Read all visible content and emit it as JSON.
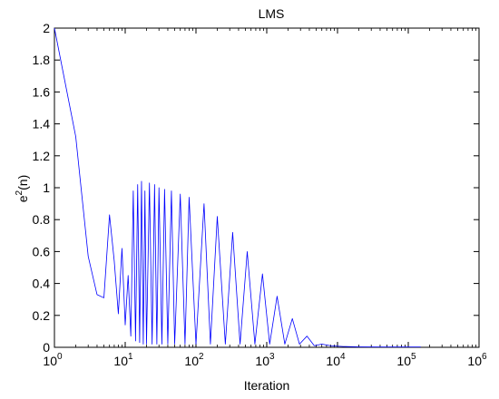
{
  "chart_data": {
    "type": "line",
    "title": "LMS",
    "xlabel": "Iteration",
    "ylabel": {
      "base": "e",
      "sup": "2",
      "suffix": "(n)"
    },
    "xscale": "log",
    "xlim": [
      1,
      1000000
    ],
    "ylim": [
      0,
      2
    ],
    "grid": false,
    "legend": "none",
    "line_color": "#0000ff",
    "x_ticks": [
      {
        "value": 1,
        "base": "10",
        "exp": "0"
      },
      {
        "value": 10,
        "base": "10",
        "exp": "1"
      },
      {
        "value": 100,
        "base": "10",
        "exp": "2"
      },
      {
        "value": 1000,
        "base": "10",
        "exp": "3"
      },
      {
        "value": 10000,
        "base": "10",
        "exp": "4"
      },
      {
        "value": 100000,
        "base": "10",
        "exp": "5"
      },
      {
        "value": 1000000,
        "base": "10",
        "exp": "6"
      }
    ],
    "y_ticks": [
      {
        "value": 0,
        "label": "0"
      },
      {
        "value": 0.2,
        "label": "0.2"
      },
      {
        "value": 0.4,
        "label": "0.4"
      },
      {
        "value": 0.6,
        "label": "0.6"
      },
      {
        "value": 0.8,
        "label": "0.8"
      },
      {
        "value": 1.0,
        "label": "1"
      },
      {
        "value": 1.2,
        "label": "1.2"
      },
      {
        "value": 1.4,
        "label": "1.4"
      },
      {
        "value": 1.6,
        "label": "1.6"
      },
      {
        "value": 1.8,
        "label": "1.8"
      },
      {
        "value": 2.0,
        "label": "2"
      }
    ],
    "series": [
      {
        "x": [
          1,
          2,
          3,
          4,
          5,
          6,
          7,
          8,
          9,
          10,
          11,
          12,
          13,
          14,
          15,
          16,
          17,
          18,
          19,
          20,
          22,
          24,
          26,
          28,
          30,
          33,
          36,
          40,
          45,
          50,
          60,
          70,
          80,
          100,
          130,
          160,
          200,
          260,
          330,
          420,
          530,
          680,
          870,
          1100,
          1400,
          1800,
          2300,
          2900,
          3700,
          4700,
          6000,
          8000,
          12000,
          20000,
          40000,
          80000,
          150000
        ],
        "y": [
          2.0,
          1.32,
          0.57,
          0.33,
          0.31,
          0.83,
          0.54,
          0.21,
          0.62,
          0.14,
          0.45,
          0.07,
          0.98,
          0.04,
          1.02,
          0.03,
          1.04,
          0.02,
          0.98,
          0.02,
          1.03,
          0.02,
          1.02,
          0.02,
          1.0,
          0.02,
          0.99,
          0.02,
          0.98,
          0.02,
          0.96,
          0.02,
          0.94,
          0.02,
          0.9,
          0.02,
          0.82,
          0.02,
          0.72,
          0.02,
          0.6,
          0.02,
          0.46,
          0.02,
          0.32,
          0.02,
          0.18,
          0.02,
          0.07,
          0.01,
          0.02,
          0.01,
          0.005,
          0.003,
          0.002,
          0.002,
          0.002
        ]
      }
    ]
  }
}
